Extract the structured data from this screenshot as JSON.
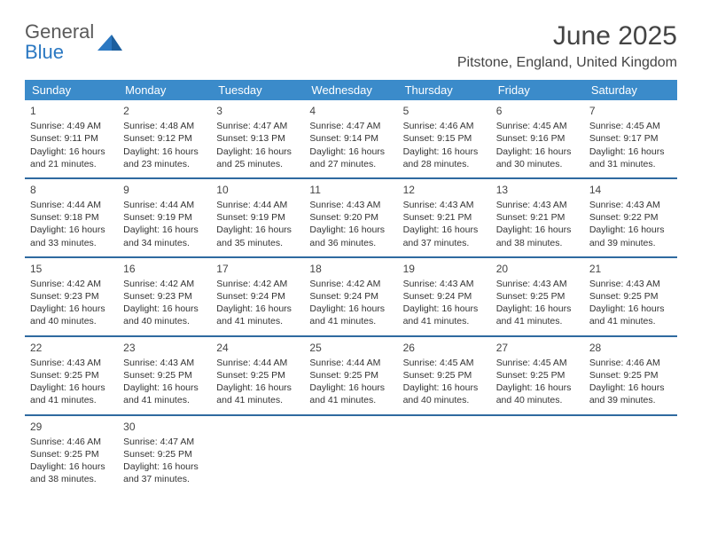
{
  "logo": {
    "line1": "General",
    "line2": "Blue"
  },
  "title": "June 2025",
  "location": "Pitstone, England, United Kingdom",
  "colors": {
    "header_bg": "#3b8bca",
    "header_text": "#ffffff",
    "row_border": "#2f6aa0",
    "logo_blue": "#2b78c2",
    "text": "#333333",
    "background": "#ffffff"
  },
  "typography": {
    "title_fontsize": 30,
    "location_fontsize": 16,
    "dow_fontsize": 13,
    "daynum_fontsize": 12,
    "body_fontsize": 10.5
  },
  "dow": [
    "Sunday",
    "Monday",
    "Tuesday",
    "Wednesday",
    "Thursday",
    "Friday",
    "Saturday"
  ],
  "weeks": [
    [
      {
        "n": "1",
        "sr": "4:49 AM",
        "ss": "9:11 PM",
        "dl": "16 hours and 21 minutes."
      },
      {
        "n": "2",
        "sr": "4:48 AM",
        "ss": "9:12 PM",
        "dl": "16 hours and 23 minutes."
      },
      {
        "n": "3",
        "sr": "4:47 AM",
        "ss": "9:13 PM",
        "dl": "16 hours and 25 minutes."
      },
      {
        "n": "4",
        "sr": "4:47 AM",
        "ss": "9:14 PM",
        "dl": "16 hours and 27 minutes."
      },
      {
        "n": "5",
        "sr": "4:46 AM",
        "ss": "9:15 PM",
        "dl": "16 hours and 28 minutes."
      },
      {
        "n": "6",
        "sr": "4:45 AM",
        "ss": "9:16 PM",
        "dl": "16 hours and 30 minutes."
      },
      {
        "n": "7",
        "sr": "4:45 AM",
        "ss": "9:17 PM",
        "dl": "16 hours and 31 minutes."
      }
    ],
    [
      {
        "n": "8",
        "sr": "4:44 AM",
        "ss": "9:18 PM",
        "dl": "16 hours and 33 minutes."
      },
      {
        "n": "9",
        "sr": "4:44 AM",
        "ss": "9:19 PM",
        "dl": "16 hours and 34 minutes."
      },
      {
        "n": "10",
        "sr": "4:44 AM",
        "ss": "9:19 PM",
        "dl": "16 hours and 35 minutes."
      },
      {
        "n": "11",
        "sr": "4:43 AM",
        "ss": "9:20 PM",
        "dl": "16 hours and 36 minutes."
      },
      {
        "n": "12",
        "sr": "4:43 AM",
        "ss": "9:21 PM",
        "dl": "16 hours and 37 minutes."
      },
      {
        "n": "13",
        "sr": "4:43 AM",
        "ss": "9:21 PM",
        "dl": "16 hours and 38 minutes."
      },
      {
        "n": "14",
        "sr": "4:43 AM",
        "ss": "9:22 PM",
        "dl": "16 hours and 39 minutes."
      }
    ],
    [
      {
        "n": "15",
        "sr": "4:42 AM",
        "ss": "9:23 PM",
        "dl": "16 hours and 40 minutes."
      },
      {
        "n": "16",
        "sr": "4:42 AM",
        "ss": "9:23 PM",
        "dl": "16 hours and 40 minutes."
      },
      {
        "n": "17",
        "sr": "4:42 AM",
        "ss": "9:24 PM",
        "dl": "16 hours and 41 minutes."
      },
      {
        "n": "18",
        "sr": "4:42 AM",
        "ss": "9:24 PM",
        "dl": "16 hours and 41 minutes."
      },
      {
        "n": "19",
        "sr": "4:43 AM",
        "ss": "9:24 PM",
        "dl": "16 hours and 41 minutes."
      },
      {
        "n": "20",
        "sr": "4:43 AM",
        "ss": "9:25 PM",
        "dl": "16 hours and 41 minutes."
      },
      {
        "n": "21",
        "sr": "4:43 AM",
        "ss": "9:25 PM",
        "dl": "16 hours and 41 minutes."
      }
    ],
    [
      {
        "n": "22",
        "sr": "4:43 AM",
        "ss": "9:25 PM",
        "dl": "16 hours and 41 minutes."
      },
      {
        "n": "23",
        "sr": "4:43 AM",
        "ss": "9:25 PM",
        "dl": "16 hours and 41 minutes."
      },
      {
        "n": "24",
        "sr": "4:44 AM",
        "ss": "9:25 PM",
        "dl": "16 hours and 41 minutes."
      },
      {
        "n": "25",
        "sr": "4:44 AM",
        "ss": "9:25 PM",
        "dl": "16 hours and 41 minutes."
      },
      {
        "n": "26",
        "sr": "4:45 AM",
        "ss": "9:25 PM",
        "dl": "16 hours and 40 minutes."
      },
      {
        "n": "27",
        "sr": "4:45 AM",
        "ss": "9:25 PM",
        "dl": "16 hours and 40 minutes."
      },
      {
        "n": "28",
        "sr": "4:46 AM",
        "ss": "9:25 PM",
        "dl": "16 hours and 39 minutes."
      }
    ],
    [
      {
        "n": "29",
        "sr": "4:46 AM",
        "ss": "9:25 PM",
        "dl": "16 hours and 38 minutes."
      },
      {
        "n": "30",
        "sr": "4:47 AM",
        "ss": "9:25 PM",
        "dl": "16 hours and 37 minutes."
      },
      null,
      null,
      null,
      null,
      null
    ]
  ],
  "labels": {
    "sunrise": "Sunrise:",
    "sunset": "Sunset:",
    "daylight": "Daylight:"
  }
}
